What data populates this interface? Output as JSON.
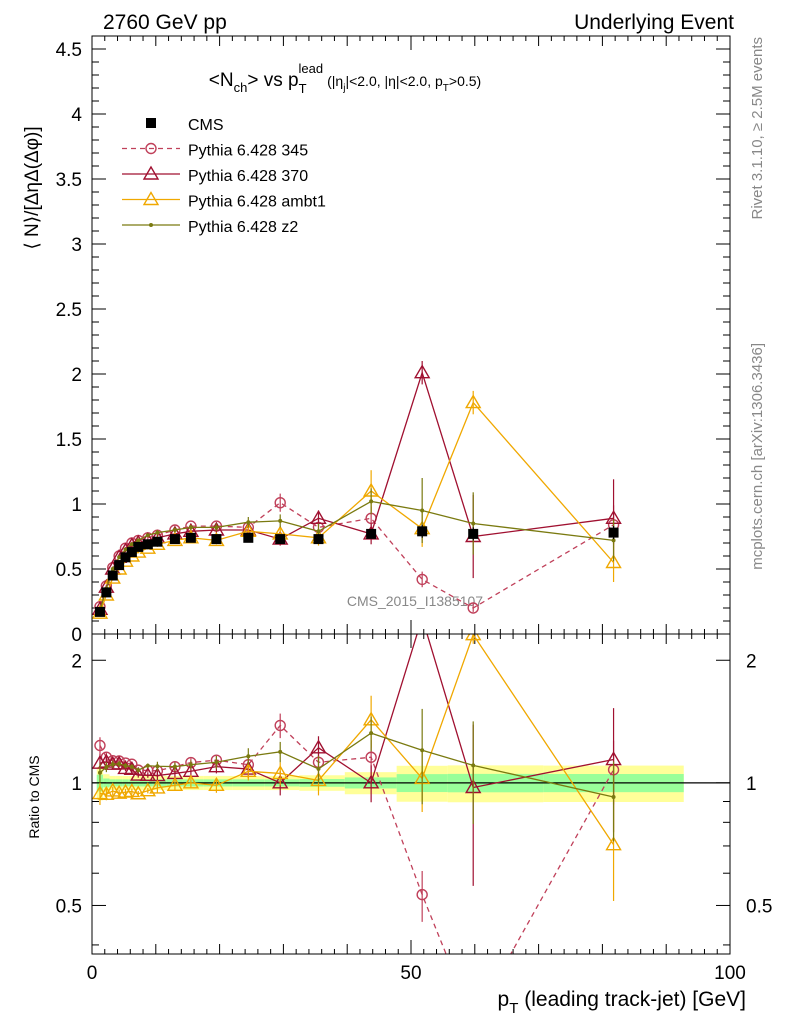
{
  "header": {
    "left": "2760 GeV pp",
    "right": "Underlying Event"
  },
  "side_text": {
    "rivet": "Rivet 3.1.10, ≥ 2.5M events",
    "mcplots": "mcplots.cern.ch [arXiv:1306.3436]"
  },
  "chart_data": {
    "type": "line",
    "title_parts": {
      "a": "<N",
      "a_sub": "ch",
      "b": "> vs p",
      "b_sub": "T",
      "b_sup": "lead",
      "cuts": "(|η",
      "cuts_sub": "j",
      "cuts_rest": "|<2.0, |η|<2.0, p",
      "cuts_sub2": "T",
      "cuts_end": ">0.5)"
    },
    "watermark": "CMS_2015_I1385107",
    "xlabel": "p_T (leading track-jet) [GeV]",
    "xlabel_parts": {
      "main": "p",
      "sub": "T",
      "rest": " (leading track-jet) [GeV]"
    },
    "ylabel_top": "⟨ N⟩/[ΔηΔ(Δφ)]",
    "ylabel_bottom": "Ratio to CMS",
    "xlim": [
      0,
      100
    ],
    "ylim_top": [
      0,
      4.6
    ],
    "ylim_ratio": [
      0.38,
      2.32
    ],
    "x_ticks": [
      0,
      50,
      100
    ],
    "y_ticks_top": [
      "0",
      "0.5",
      "1",
      "1.5",
      "2",
      "2.5",
      "3",
      "3.5",
      "4",
      "4.5"
    ],
    "y_ticks_ratio": [
      0.5,
      1,
      2
    ],
    "legend_position": "top-left",
    "x": [
      1.25,
      2.25,
      3.25,
      4.25,
      5.25,
      6.25,
      7.25,
      8.75,
      10.25,
      13.0,
      15.5,
      19.5,
      24.5,
      29.5,
      35.5,
      43.75,
      51.75,
      59.75,
      81.75
    ],
    "series": [
      {
        "name": "CMS",
        "color": "#000000",
        "marker": "square",
        "y": [
          0.17,
          0.32,
          0.45,
          0.53,
          0.59,
          0.63,
          0.67,
          0.69,
          0.71,
          0.73,
          0.74,
          0.73,
          0.74,
          0.73,
          0.73,
          0.77,
          0.79,
          0.77,
          0.78
        ],
        "err": [
          0.01,
          0.01,
          0.01,
          0.01,
          0.01,
          0.01,
          0.01,
          0.01,
          0.01,
          0.01,
          0.01,
          0.01,
          0.01,
          0.01,
          0.02,
          0.03,
          0.05,
          0.05,
          0.05
        ]
      },
      {
        "name": "Pythia 6.428 345",
        "color": "#c0405a",
        "marker": "circle",
        "dashed": true,
        "y": [
          0.21,
          0.37,
          0.51,
          0.6,
          0.66,
          0.7,
          0.72,
          0.74,
          0.76,
          0.8,
          0.83,
          0.83,
          0.82,
          1.01,
          0.82,
          0.89,
          0.42,
          0.2,
          0.84
        ],
        "err": [
          0.01,
          0.01,
          0.01,
          0.01,
          0.01,
          0.01,
          0.01,
          0.01,
          0.02,
          0.02,
          0.02,
          0.02,
          0.03,
          0.07,
          0.08,
          0.09,
          0.06,
          0.03,
          0.15
        ]
      },
      {
        "name": "Pythia 6.428 370",
        "color": "#a01030",
        "marker": "triangle",
        "y": [
          0.19,
          0.36,
          0.5,
          0.59,
          0.64,
          0.68,
          0.7,
          0.72,
          0.74,
          0.77,
          0.79,
          0.8,
          0.8,
          0.73,
          0.89,
          0.77,
          2.01,
          0.75,
          0.89
        ],
        "err": [
          0.01,
          0.01,
          0.01,
          0.01,
          0.01,
          0.01,
          0.01,
          0.01,
          0.02,
          0.02,
          0.02,
          0.03,
          0.04,
          0.05,
          0.06,
          0.08,
          0.09,
          0.32,
          0.3
        ]
      },
      {
        "name": "Pythia 6.428 ambt1",
        "color": "#f0a800",
        "marker": "triangle",
        "y": [
          0.16,
          0.3,
          0.43,
          0.5,
          0.56,
          0.6,
          0.63,
          0.66,
          0.69,
          0.72,
          0.74,
          0.72,
          0.79,
          0.77,
          0.74,
          1.1,
          0.81,
          1.78,
          0.55
        ],
        "err": [
          0.01,
          0.01,
          0.01,
          0.01,
          0.01,
          0.01,
          0.01,
          0.01,
          0.02,
          0.02,
          0.02,
          0.03,
          0.04,
          0.05,
          0.06,
          0.16,
          0.14,
          0.09,
          0.15
        ]
      },
      {
        "name": "Pythia 6.428 z2",
        "color": "#7a7a10",
        "marker": "dot",
        "y": [
          0.18,
          0.35,
          0.5,
          0.59,
          0.65,
          0.69,
          0.72,
          0.76,
          0.78,
          0.8,
          0.82,
          0.82,
          0.86,
          0.87,
          0.79,
          1.02,
          0.95,
          0.85,
          0.72
        ],
        "err": [
          0.01,
          0.01,
          0.01,
          0.01,
          0.01,
          0.01,
          0.01,
          0.01,
          0.02,
          0.02,
          0.02,
          0.03,
          0.04,
          0.05,
          0.06,
          0.1,
          0.25,
          0.24,
          0.16
        ]
      }
    ]
  }
}
